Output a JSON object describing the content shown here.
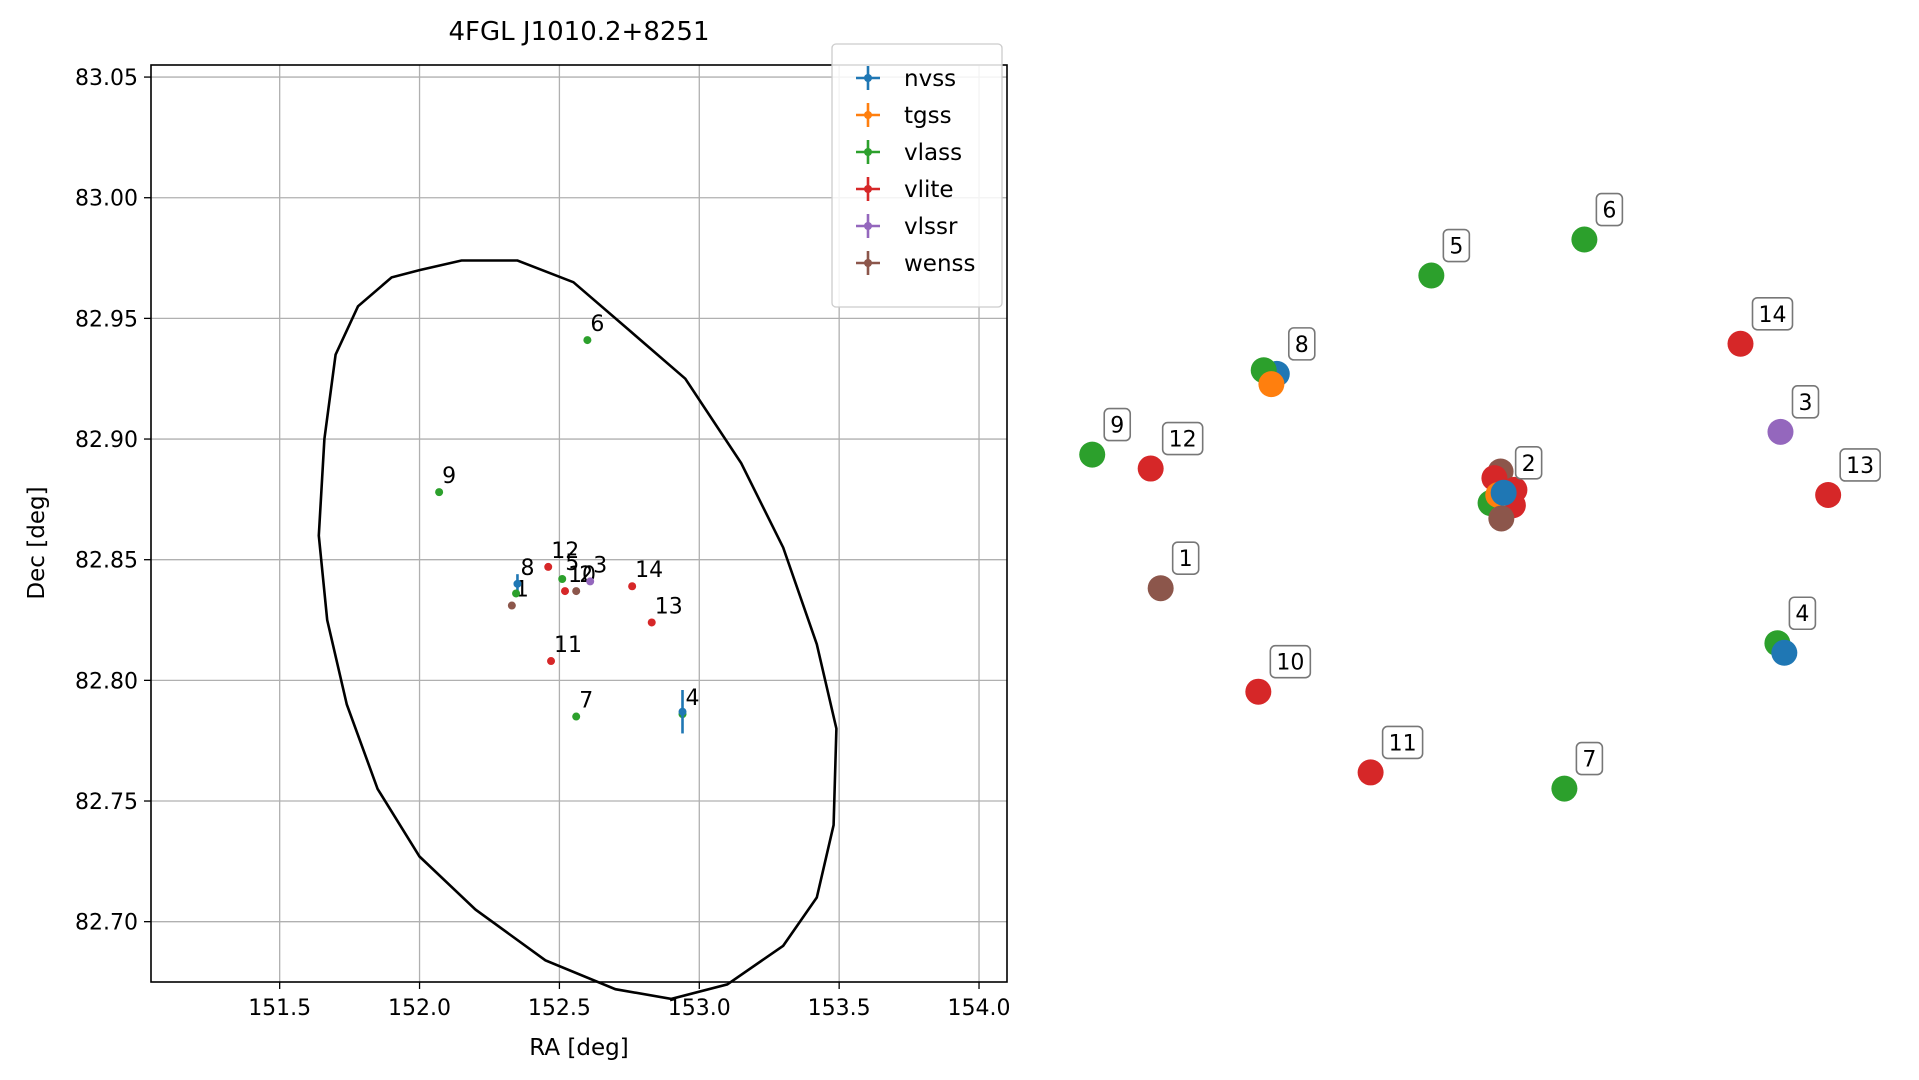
{
  "colors": {
    "nvss": "#1f77b4",
    "tgss": "#ff7f0e",
    "vlass": "#2ca02c",
    "vlite": "#d62728",
    "vlssr": "#9467bd",
    "wenss": "#8c564b",
    "grid": "#b0b0b0",
    "axes": "#000000"
  },
  "chart_data": [
    {
      "type": "scatter",
      "title": "4FGL J1010.2+8251",
      "xlabel": "RA [deg]",
      "ylabel": "Dec [deg]",
      "xlim": [
        151.04,
        154.1
      ],
      "ylim": [
        82.675,
        83.055
      ],
      "xticks": [
        151.5,
        152.0,
        152.5,
        153.0,
        153.5,
        154.0
      ],
      "xtick_labels": [
        "151.5",
        "152.0",
        "152.5",
        "153.0",
        "153.5",
        "154.0"
      ],
      "yticks": [
        82.7,
        82.75,
        82.8,
        82.85,
        82.9,
        82.95,
        83.0,
        83.05
      ],
      "ytick_labels": [
        "82.70",
        "82.75",
        "82.80",
        "82.85",
        "82.90",
        "82.95",
        "83.00",
        "83.05"
      ],
      "grid": true,
      "legend_position": "top-right",
      "legend": [
        "nvss",
        "tgss",
        "vlass",
        "vlite",
        "vlssr",
        "wenss"
      ],
      "ellipse": {
        "center_ra": 152.575,
        "center_dec": 82.864,
        "points": [
          [
            151.66,
            82.9
          ],
          [
            151.7,
            82.935
          ],
          [
            151.78,
            82.955
          ],
          [
            151.9,
            82.967
          ],
          [
            152.0,
            82.97
          ],
          [
            152.15,
            82.974
          ],
          [
            152.35,
            82.974
          ],
          [
            152.55,
            82.965
          ],
          [
            152.75,
            82.945
          ],
          [
            152.95,
            82.925
          ],
          [
            153.15,
            82.89
          ],
          [
            153.3,
            82.855
          ],
          [
            153.42,
            82.815
          ],
          [
            153.49,
            82.78
          ],
          [
            153.48,
            82.74
          ],
          [
            153.42,
            82.71
          ],
          [
            153.3,
            82.69
          ],
          [
            153.1,
            82.674
          ],
          [
            152.9,
            82.668
          ],
          [
            152.7,
            82.672
          ],
          [
            152.45,
            82.684
          ],
          [
            152.2,
            82.705
          ],
          [
            152.0,
            82.727
          ],
          [
            151.85,
            82.755
          ],
          [
            151.74,
            82.79
          ],
          [
            151.67,
            82.825
          ],
          [
            151.64,
            82.86
          ],
          [
            151.66,
            82.9
          ]
        ]
      },
      "points": [
        {
          "label": "1",
          "survey": "wenss",
          "ra": 152.33,
          "dec": 82.831
        },
        {
          "label": "8",
          "survey": "nvss",
          "ra": 152.35,
          "dec": 82.84,
          "dec_err": 0.004
        },
        {
          "label": "",
          "survey": "vlass",
          "ra": 152.345,
          "dec": 82.836
        },
        {
          "label": "12",
          "survey": "vlite",
          "ra": 152.46,
          "dec": 82.847
        },
        {
          "label": "5",
          "survey": "vlass",
          "ra": 152.51,
          "dec": 82.842
        },
        {
          "label": "10",
          "survey": "vlite",
          "ra": 152.52,
          "dec": 82.837
        },
        {
          "label": "2",
          "survey": "wenss",
          "ra": 152.56,
          "dec": 82.837
        },
        {
          "label": "3",
          "survey": "vlssr",
          "ra": 152.61,
          "dec": 82.841
        },
        {
          "label": "14",
          "survey": "vlite",
          "ra": 152.76,
          "dec": 82.839
        },
        {
          "label": "13",
          "survey": "vlite",
          "ra": 152.83,
          "dec": 82.824
        },
        {
          "label": "11",
          "survey": "vlite",
          "ra": 152.47,
          "dec": 82.808
        },
        {
          "label": "9",
          "survey": "vlass",
          "ra": 152.07,
          "dec": 82.878
        },
        {
          "label": "6",
          "survey": "vlass",
          "ra": 152.6,
          "dec": 82.941
        },
        {
          "label": "7",
          "survey": "vlass",
          "ra": 152.56,
          "dec": 82.785
        },
        {
          "label": "4",
          "survey": "vlass",
          "ra": 152.94,
          "dec": 82.786
        },
        {
          "label": "",
          "survey": "nvss",
          "ra": 152.94,
          "dec": 82.787,
          "dec_err": 0.009
        }
      ]
    },
    {
      "type": "scatter",
      "xlim": [
        0,
        1
      ],
      "ylim": [
        0,
        1
      ],
      "axes_visible": false,
      "points": [
        {
          "label": "6",
          "survey": "vlass",
          "x": 0.652,
          "y": 0.878
        },
        {
          "label": "5",
          "survey": "vlass",
          "x": 0.453,
          "y": 0.829
        },
        {
          "label": "14",
          "survey": "vlite",
          "x": 0.855,
          "y": 0.736
        },
        {
          "label": "8",
          "survey": "nvss",
          "x": 0.252,
          "y": 0.695
        },
        {
          "label": "",
          "survey": "vlass",
          "x": 0.235,
          "y": 0.7
        },
        {
          "label": "",
          "survey": "tgss",
          "x": 0.245,
          "y": 0.681
        },
        {
          "label": "3",
          "survey": "vlssr",
          "x": 0.907,
          "y": 0.616
        },
        {
          "label": "9",
          "survey": "vlass",
          "x": 0.012,
          "y": 0.585
        },
        {
          "label": "12",
          "survey": "vlite",
          "x": 0.088,
          "y": 0.566
        },
        {
          "label": "13",
          "survey": "vlite",
          "x": 0.969,
          "y": 0.53
        },
        {
          "label": "",
          "survey": "wenss",
          "x": 0.543,
          "y": 0.562
        },
        {
          "label": "",
          "survey": "vlite",
          "x": 0.535,
          "y": 0.553
        },
        {
          "label": "",
          "survey": "vlite",
          "x": 0.561,
          "y": 0.537
        },
        {
          "label": "",
          "survey": "vlass",
          "x": 0.53,
          "y": 0.519
        },
        {
          "label": "",
          "survey": "vlite",
          "x": 0.559,
          "y": 0.516
        },
        {
          "label": "",
          "survey": "tgss",
          "x": 0.54,
          "y": 0.53
        },
        {
          "label": "",
          "survey": "wenss",
          "x": 0.544,
          "y": 0.498
        },
        {
          "label": "2",
          "survey": "nvss",
          "x": 0.547,
          "y": 0.533
        },
        {
          "label": "1",
          "survey": "wenss",
          "x": 0.101,
          "y": 0.403
        },
        {
          "label": "4",
          "survey": "vlass",
          "x": 0.903,
          "y": 0.328
        },
        {
          "label": "",
          "survey": "nvss",
          "x": 0.912,
          "y": 0.315
        },
        {
          "label": "10",
          "survey": "vlite",
          "x": 0.228,
          "y": 0.262
        },
        {
          "label": "11",
          "survey": "vlite",
          "x": 0.374,
          "y": 0.152
        },
        {
          "label": "7",
          "survey": "vlass",
          "x": 0.626,
          "y": 0.13
        }
      ]
    }
  ]
}
